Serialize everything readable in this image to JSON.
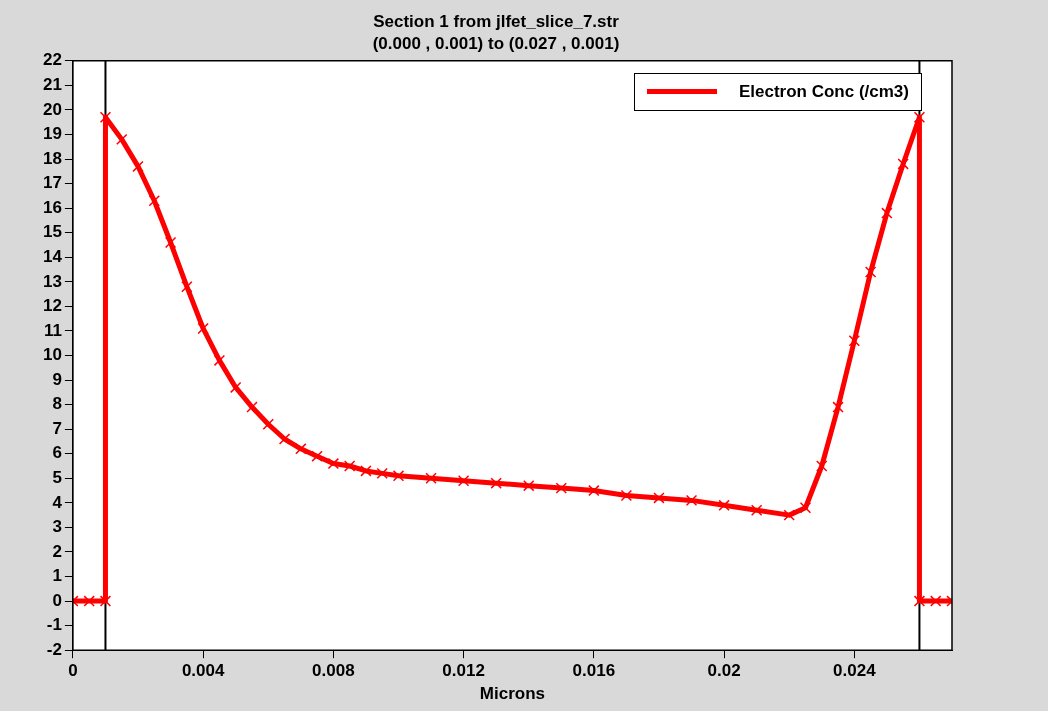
{
  "chart_data": {
    "type": "line",
    "title": "Section 1 from jlfet_slice_7.str",
    "subtitle": "(0.000 , 0.001) to (0.027 , 0.001)",
    "xlabel": "Microns",
    "xlim": [
      0,
      0.027
    ],
    "xticks": [
      0,
      0.004,
      0.008,
      0.012,
      0.016,
      0.02,
      0.024
    ],
    "ylim": [
      -2,
      22
    ],
    "yticks": [
      -2,
      -1,
      0,
      1,
      2,
      3,
      4,
      5,
      6,
      7,
      8,
      9,
      10,
      11,
      12,
      13,
      14,
      15,
      16,
      17,
      18,
      19,
      20,
      21,
      22
    ],
    "grid": false,
    "legend": "top right",
    "marker": "cross",
    "line_style": "solid",
    "ref_lines": [
      {
        "axis": "x",
        "value": 0.001,
        "color": "#000000"
      },
      {
        "axis": "x",
        "value": 0.026,
        "color": "#000000"
      }
    ],
    "series": [
      {
        "name": "Electron Conc (/cm3)",
        "color": "#ff0000",
        "x": [
          0,
          0.0005,
          0.001,
          0.001,
          0.0015,
          0.002,
          0.0025,
          0.003,
          0.0035,
          0.004,
          0.0045,
          0.005,
          0.0055,
          0.006,
          0.0065,
          0.007,
          0.0075,
          0.008,
          0.0085,
          0.009,
          0.0095,
          0.01,
          0.011,
          0.012,
          0.013,
          0.014,
          0.015,
          0.016,
          0.017,
          0.018,
          0.019,
          0.02,
          0.021,
          0.022,
          0.0225,
          0.023,
          0.0235,
          0.024,
          0.0245,
          0.025,
          0.0255,
          0.026,
          0.026,
          0.0265,
          0.027
        ],
        "values": [
          0,
          0,
          0,
          19.7,
          18.8,
          17.7,
          16.3,
          14.6,
          12.8,
          11.1,
          9.8,
          8.7,
          7.9,
          7.2,
          6.6,
          6.2,
          5.9,
          5.6,
          5.5,
          5.3,
          5.2,
          5.1,
          5.0,
          4.9,
          4.8,
          4.7,
          4.6,
          4.5,
          4.3,
          4.2,
          4.1,
          3.9,
          3.7,
          3.5,
          3.8,
          5.5,
          7.9,
          10.6,
          13.4,
          15.8,
          17.8,
          19.7,
          0,
          0,
          0
        ]
      }
    ]
  }
}
